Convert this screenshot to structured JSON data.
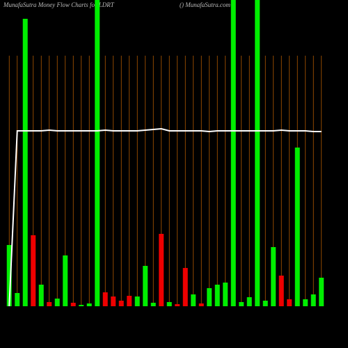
{
  "chart_data": {
    "type": "bar",
    "title": "MunafaSutra  Money Flow  Charts for LDRT",
    "subtitle": "() MunafaSutra.com",
    "categories": [
      null,
      null,
      null,
      null,
      null,
      null,
      null,
      null,
      null,
      null,
      null,
      null,
      null,
      null,
      null,
      null,
      null,
      null,
      null,
      null,
      null,
      null,
      null,
      null,
      null,
      null,
      null,
      null,
      null,
      null,
      null,
      null,
      null,
      null,
      null,
      null,
      null,
      null,
      null,
      null
    ],
    "values": [
      88,
      19,
      413,
      102,
      31,
      6,
      11,
      73,
      5,
      2,
      4,
      440,
      20,
      14,
      8,
      15,
      14,
      58,
      5,
      104,
      6,
      3,
      55,
      17,
      4,
      26,
      31,
      34,
      440,
      6,
      13,
      440,
      8,
      85,
      44,
      10,
      228,
      10,
      17,
      41
    ],
    "colors": [
      "#00ee00",
      "#00ee00",
      "#00ee00",
      "#ee0000",
      "#00ee00",
      "#ee0000",
      "#00ee00",
      "#00ee00",
      "#ee0000",
      "#00ee00",
      "#00ee00",
      "#00ee00",
      "#ee0000",
      "#ee0000",
      "#ee0000",
      "#ee0000",
      "#00ee00",
      "#00ee00",
      "#00ee00",
      "#ee0000",
      "#00ee00",
      "#ee0000",
      "#ee0000",
      "#00ee00",
      "#ee0000",
      "#00ee00",
      "#00ee00",
      "#00ee00",
      "#00ee00",
      "#00ee00",
      "#00ee00",
      "#00ee00",
      "#00ee00",
      "#00ee00",
      "#ee0000",
      "#ee0000",
      "#00ee00",
      "#00ee00",
      "#00ee00",
      "#00ee00"
    ],
    "line": {
      "color": "#ffffff",
      "values": [
        0,
        252,
        252,
        252,
        252,
        253,
        252,
        252,
        252,
        252,
        252,
        252,
        253,
        252,
        252,
        252,
        252,
        253,
        254,
        255,
        252,
        252,
        252,
        252,
        252,
        251,
        252,
        252,
        252,
        252,
        252,
        252,
        252,
        252,
        253,
        252,
        252,
        252,
        251,
        251
      ]
    },
    "grid_color": "#b35900",
    "ylim": [
      0,
      440
    ]
  }
}
